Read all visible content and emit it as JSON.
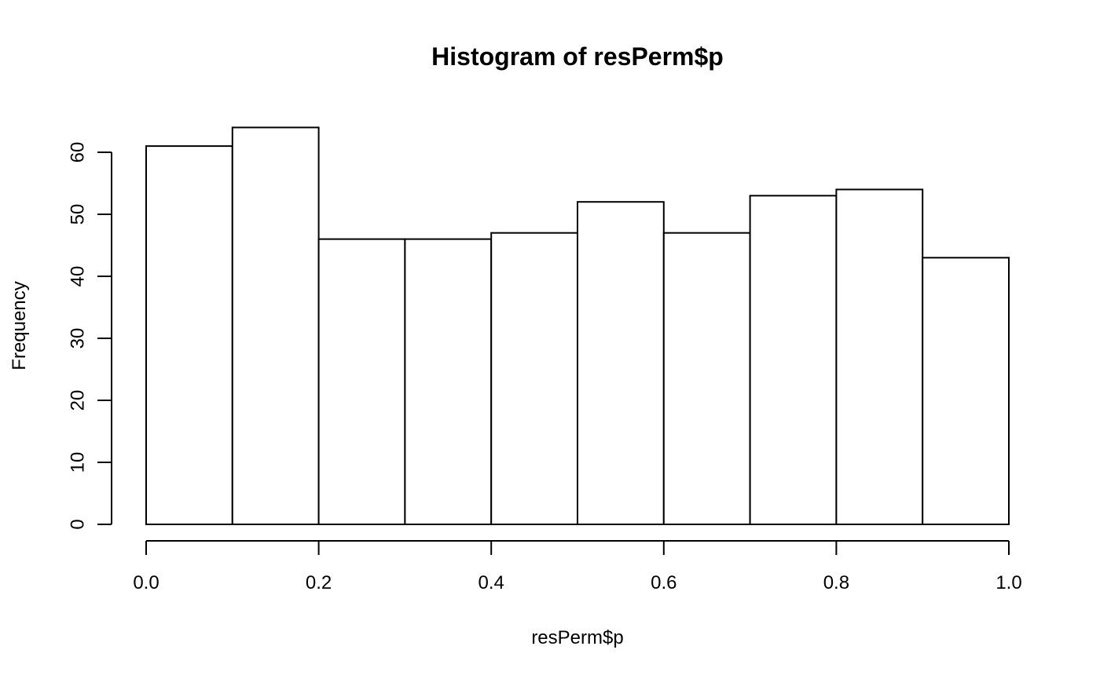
{
  "chart_data": {
    "type": "bar",
    "subtype": "histogram",
    "title": "Histogram of resPerm$p",
    "xlabel": "resPerm$p",
    "ylabel": "Frequency",
    "bin_edges": [
      0.0,
      0.1,
      0.2,
      0.3,
      0.4,
      0.5,
      0.6,
      0.7,
      0.8,
      0.9,
      1.0
    ],
    "values": [
      61,
      64,
      46,
      46,
      47,
      52,
      47,
      53,
      54,
      43
    ],
    "xlim": [
      0,
      1
    ],
    "ylim": [
      0,
      64
    ],
    "x_ticks": [
      0.0,
      0.2,
      0.4,
      0.6,
      0.8,
      1.0
    ],
    "x_tick_labels": [
      "0.0",
      "0.2",
      "0.4",
      "0.6",
      "0.8",
      "1.0"
    ],
    "y_ticks": [
      0,
      10,
      20,
      30,
      40,
      50,
      60
    ],
    "y_tick_labels": [
      "0",
      "10",
      "20",
      "30",
      "40",
      "50",
      "60"
    ],
    "grid": false,
    "bar_fill": "#ffffff",
    "bar_stroke": "#000000"
  }
}
